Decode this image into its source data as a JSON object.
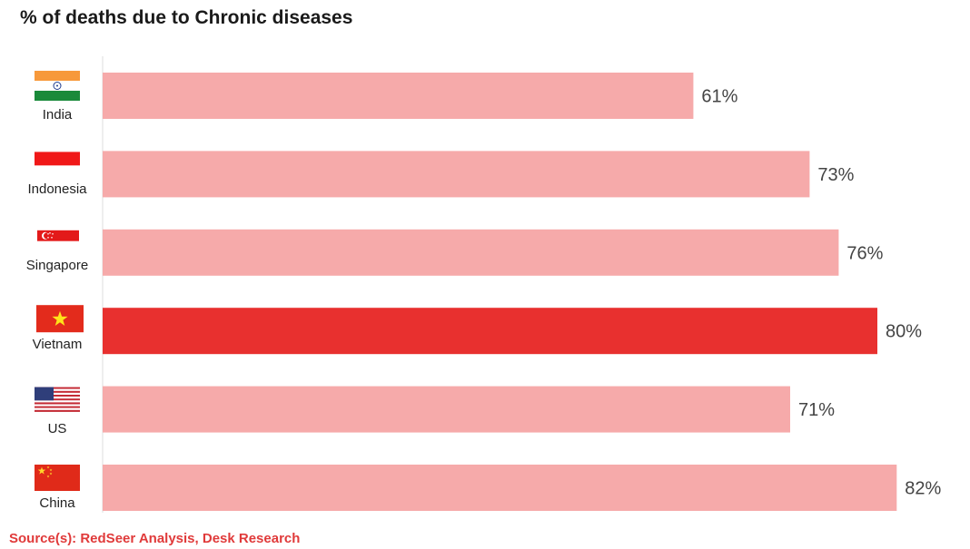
{
  "title": "% of deaths due to Chronic diseases",
  "source": "Source(s): RedSeer Analysis, Desk Research",
  "colors": {
    "bar": "#f6aaaa",
    "highlight": "#e8302f",
    "source_text": "#e03a3a"
  },
  "chart_data": {
    "type": "bar",
    "orientation": "horizontal",
    "categories": [
      "India",
      "Indonesia",
      "Singapore",
      "Vietnam",
      "US",
      "China"
    ],
    "values": [
      61,
      73,
      76,
      80,
      71,
      82
    ],
    "value_labels": [
      "61%",
      "73%",
      "76%",
      "80%",
      "71%",
      "82%"
    ],
    "flags": [
      "india-flag-icon",
      "indonesia-flag-icon",
      "singapore-flag-icon",
      "vietnam-flag-icon",
      "us-flag-icon",
      "china-flag-icon"
    ],
    "highlight": "Vietnam",
    "title": "% of deaths due to Chronic diseases",
    "xlim": [
      0,
      100
    ],
    "grid": false
  }
}
